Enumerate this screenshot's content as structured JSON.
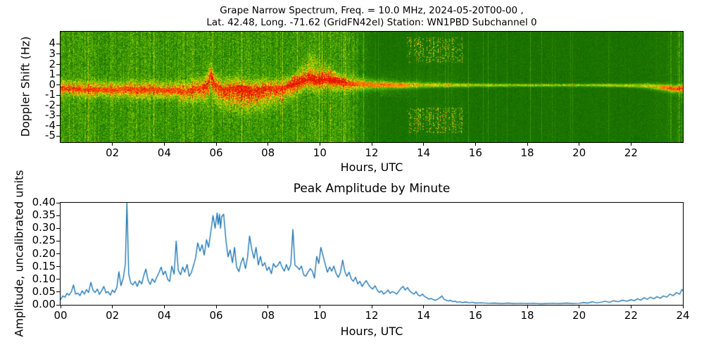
{
  "spectrogram": {
    "title_line1": "Grape Narrow Spectrum, Freq. = 10.0 MHz, 2024-05-20T00-00 ,",
    "title_line2": "Lat.  42.48, Long. -71.62 (GridFN42el) Station: WN1PBD Subchannel 0",
    "ylabel": "Doppler Shift (Hz)",
    "xlabel": "Hours, UTC",
    "station": "WN1PBD",
    "frequency": "10.0 MHz",
    "date": "2024-05-20T00-00",
    "grid_square": "FN42el",
    "subchannel": "0",
    "latitude": "42.48",
    "longitude": "-71.62",
    "x_ticks": [
      {
        "value": 2,
        "label": "02"
      },
      {
        "value": 4,
        "label": "04"
      },
      {
        "value": 6,
        "label": "06"
      },
      {
        "value": 8,
        "label": "08"
      },
      {
        "value": 10,
        "label": "10"
      },
      {
        "value": 12,
        "label": "12"
      },
      {
        "value": 14,
        "label": "14"
      },
      {
        "value": 16,
        "label": "16"
      },
      {
        "value": 18,
        "label": "18"
      },
      {
        "value": 20,
        "label": "20"
      },
      {
        "value": 22,
        "label": "22"
      }
    ],
    "y_ticks": [
      {
        "value": 4,
        "label": "4"
      },
      {
        "value": 3,
        "label": "3"
      },
      {
        "value": 2,
        "label": "2"
      },
      {
        "value": 1,
        "label": "1"
      },
      {
        "value": 0,
        "label": "0"
      },
      {
        "value": -1,
        "label": "-1"
      },
      {
        "value": -2,
        "label": "-2"
      },
      {
        "value": -3,
        "label": "-3"
      },
      {
        "value": -4,
        "label": "-4"
      },
      {
        "value": -5,
        "label": "-5"
      }
    ]
  },
  "amplitude_plot": {
    "title": "Peak Amplitude by Minute",
    "ylabel": "Amplitude, uncalibrated units",
    "xlabel": "Hours, UTC",
    "line_color": "#1f77b4",
    "x_ticks": [
      {
        "value": 0,
        "label": "00"
      },
      {
        "value": 2,
        "label": "02"
      },
      {
        "value": 4,
        "label": "04"
      },
      {
        "value": 6,
        "label": "06"
      },
      {
        "value": 8,
        "label": "08"
      },
      {
        "value": 10,
        "label": "10"
      },
      {
        "value": 12,
        "label": "12"
      },
      {
        "value": 14,
        "label": "14"
      },
      {
        "value": 16,
        "label": "16"
      },
      {
        "value": 18,
        "label": "18"
      },
      {
        "value": 20,
        "label": "20"
      },
      {
        "value": 22,
        "label": "22"
      },
      {
        "value": 24,
        "label": "24"
      }
    ],
    "y_ticks": [
      {
        "value": 0.4,
        "label": "0.40"
      },
      {
        "value": 0.35,
        "label": "0.35"
      },
      {
        "value": 0.3,
        "label": "0.30"
      },
      {
        "value": 0.25,
        "label": "0.25"
      },
      {
        "value": 0.2,
        "label": "0.20"
      },
      {
        "value": 0.15,
        "label": "0.15"
      },
      {
        "value": 0.1,
        "label": "0.10"
      },
      {
        "value": 0.05,
        "label": "0.05"
      },
      {
        "value": 0.0,
        "label": "0.00"
      }
    ]
  },
  "chart_data": [
    {
      "type": "heatmap",
      "title": "Grape Narrow Spectrum, Freq. = 10.0 MHz, 2024-05-20T00-00 ,",
      "subtitle": "Lat. 42.48, Long. -71.62 (GridFN42el) Station: WN1PBD Subchannel 0",
      "xlabel": "Hours, UTC",
      "ylabel": "Doppler Shift (Hz)",
      "xlim": [
        0,
        24
      ],
      "ylim": [
        -5.6,
        5.2
      ],
      "x_tick_values": [
        2,
        4,
        6,
        8,
        10,
        12,
        14,
        16,
        18,
        20,
        22
      ],
      "y_tick_values": [
        4,
        3,
        2,
        1,
        0,
        -1,
        -2,
        -3,
        -4,
        -5
      ],
      "colormap_stops": [
        [
          0.0,
          "#0a5f00"
        ],
        [
          0.3,
          "#288200"
        ],
        [
          0.5,
          "#50af00"
        ],
        [
          0.65,
          "#96cd00"
        ],
        [
          0.74,
          "#e6e600"
        ],
        [
          0.84,
          "#ffa000"
        ],
        [
          0.92,
          "#ff5a00"
        ],
        [
          1.0,
          "#e11400"
        ]
      ],
      "center_path": [
        [
          0,
          -0.3
        ],
        [
          0.5,
          -0.35
        ],
        [
          1,
          -0.45
        ],
        [
          1.5,
          -0.4
        ],
        [
          2,
          -0.5
        ],
        [
          2.5,
          -0.35
        ],
        [
          3,
          -0.5
        ],
        [
          3.5,
          -0.4
        ],
        [
          4,
          -0.55
        ],
        [
          4.5,
          -0.5
        ],
        [
          4.8,
          -0.7
        ],
        [
          5.1,
          -0.45
        ],
        [
          5.4,
          -0.3
        ],
        [
          5.65,
          -0.05
        ],
        [
          5.78,
          1.1
        ],
        [
          5.9,
          0.25
        ],
        [
          6.05,
          -0.15
        ],
        [
          6.25,
          -0.45
        ],
        [
          6.5,
          -0.35
        ],
        [
          6.8,
          -0.25
        ],
        [
          7.1,
          -0.35
        ],
        [
          7.4,
          -0.5
        ],
        [
          7.7,
          -0.4
        ],
        [
          8,
          -0.3
        ],
        [
          8.3,
          -0.35
        ],
        [
          8.6,
          -0.25
        ],
        [
          9,
          -0.05
        ],
        [
          9.3,
          0.25
        ],
        [
          9.6,
          0.5
        ],
        [
          9.9,
          0.25
        ],
        [
          10.2,
          0.45
        ],
        [
          10.5,
          0.3
        ],
        [
          10.8,
          0.2
        ],
        [
          11.2,
          0.15
        ],
        [
          11.6,
          0.1
        ],
        [
          12,
          0.05
        ],
        [
          13,
          0.0
        ],
        [
          15,
          0.0
        ],
        [
          17,
          0.0
        ],
        [
          19,
          0.0
        ],
        [
          21,
          0.0
        ],
        [
          22.5,
          -0.05
        ],
        [
          23.2,
          -0.2
        ],
        [
          23.6,
          -0.35
        ],
        [
          24,
          -0.3
        ]
      ],
      "band_peak": [
        [
          0,
          0.48
        ],
        [
          5,
          0.5
        ],
        [
          6,
          0.52
        ],
        [
          9,
          0.52
        ],
        [
          11,
          0.48
        ],
        [
          12,
          0.48
        ],
        [
          13,
          0.52
        ],
        [
          15,
          0.52
        ],
        [
          17,
          0.5
        ],
        [
          19,
          0.48
        ],
        [
          21,
          0.5
        ],
        [
          22.5,
          0.55
        ],
        [
          23.5,
          0.62
        ],
        [
          24,
          0.65
        ]
      ],
      "band_width": [
        [
          0,
          0.5
        ],
        [
          4,
          0.55
        ],
        [
          5,
          0.65
        ],
        [
          6,
          0.7
        ],
        [
          7,
          0.65
        ],
        [
          8,
          0.6
        ],
        [
          9,
          0.6
        ],
        [
          10,
          0.55
        ],
        [
          11,
          0.5
        ],
        [
          12,
          0.4
        ],
        [
          12.7,
          0.25
        ],
        [
          13.5,
          0.22
        ],
        [
          14,
          0.18
        ],
        [
          15,
          0.15
        ],
        [
          16,
          0.12
        ],
        [
          18,
          0.1
        ],
        [
          20,
          0.1
        ],
        [
          22,
          0.13
        ],
        [
          23,
          0.22
        ],
        [
          24,
          0.28
        ]
      ],
      "features": {
        "noise_fade": {
          "h_start": 11.0,
          "h_end": 12.3
        },
        "lower_tail": {
          "h_start": 4.9,
          "h_end": 9.3,
          "shift_offset": -1.1
        },
        "plume": {
          "h_start": 8.65,
          "h_peak": 9.6,
          "h_end": 11.1,
          "max_shift": 3.2
        },
        "speckle_bands": {
          "h_start": 13.35,
          "h_end": 15.55,
          "shift_min": 2.2,
          "shift_max": 4.7
        },
        "right_noise": {
          "h_start": 22.6,
          "h_end": 24
        }
      }
    },
    {
      "type": "line",
      "title": "Peak Amplitude by Minute",
      "xlabel": "Hours, UTC",
      "ylabel": "Amplitude, uncalibrated units",
      "xlim": [
        0,
        24
      ],
      "ylim": [
        0,
        0.4
      ],
      "x_tick_values": [
        0,
        2,
        4,
        6,
        8,
        10,
        12,
        14,
        16,
        18,
        20,
        22,
        24
      ],
      "y_tick_values": [
        0.0,
        0.05,
        0.1,
        0.15,
        0.2,
        0.25,
        0.3,
        0.35,
        0.4
      ],
      "line_color": "#1f77b4",
      "x": [
        0,
        0.08,
        0.17,
        0.25,
        0.33,
        0.42,
        0.5,
        0.58,
        0.67,
        0.75,
        0.83,
        0.92,
        1,
        1.08,
        1.17,
        1.25,
        1.33,
        1.42,
        1.5,
        1.58,
        1.67,
        1.75,
        1.83,
        1.92,
        2,
        2.08,
        2.17,
        2.25,
        2.33,
        2.42,
        2.5,
        2.56,
        2.63,
        2.71,
        2.79,
        2.88,
        2.96,
        3.04,
        3.13,
        3.21,
        3.29,
        3.38,
        3.46,
        3.54,
        3.63,
        3.71,
        3.79,
        3.88,
        3.96,
        4.04,
        4.13,
        4.21,
        4.29,
        4.38,
        4.46,
        4.54,
        4.63,
        4.71,
        4.79,
        4.88,
        4.96,
        5.04,
        5.13,
        5.21,
        5.29,
        5.38,
        5.46,
        5.54,
        5.63,
        5.71,
        5.79,
        5.88,
        5.96,
        6.04,
        6.08,
        6.13,
        6.17,
        6.21,
        6.29,
        6.38,
        6.46,
        6.54,
        6.63,
        6.71,
        6.79,
        6.88,
        6.96,
        7.04,
        7.13,
        7.21,
        7.29,
        7.38,
        7.46,
        7.54,
        7.63,
        7.71,
        7.79,
        7.88,
        7.96,
        8.04,
        8.13,
        8.21,
        8.29,
        8.38,
        8.46,
        8.54,
        8.63,
        8.71,
        8.79,
        8.88,
        8.96,
        9.04,
        9.13,
        9.21,
        9.29,
        9.38,
        9.46,
        9.54,
        9.63,
        9.71,
        9.79,
        9.88,
        9.96,
        10.04,
        10.13,
        10.21,
        10.29,
        10.38,
        10.46,
        10.54,
        10.63,
        10.71,
        10.79,
        10.88,
        10.96,
        11.04,
        11.13,
        11.21,
        11.29,
        11.38,
        11.46,
        11.54,
        11.63,
        11.71,
        11.79,
        11.88,
        11.96,
        12.04,
        12.13,
        12.21,
        12.29,
        12.38,
        12.46,
        12.54,
        12.63,
        12.71,
        12.79,
        12.88,
        12.96,
        13.04,
        13.13,
        13.21,
        13.29,
        13.38,
        13.46,
        13.54,
        13.63,
        13.71,
        13.79,
        13.88,
        13.96,
        14.04,
        14.13,
        14.21,
        14.29,
        14.38,
        14.46,
        14.54,
        14.63,
        14.71,
        14.79,
        14.88,
        14.96,
        15.04,
        15.13,
        15.21,
        15.29,
        15.38,
        15.5,
        15.63,
        15.75,
        15.88,
        16,
        16.25,
        16.5,
        16.75,
        17,
        17.25,
        17.5,
        17.75,
        18,
        18.25,
        18.5,
        18.75,
        19,
        19.25,
        19.5,
        19.75,
        20,
        20.17,
        20.33,
        20.5,
        20.67,
        20.83,
        21,
        21.17,
        21.33,
        21.5,
        21.67,
        21.83,
        22,
        22.13,
        22.25,
        22.38,
        22.5,
        22.63,
        22.75,
        22.88,
        23,
        23.13,
        23.25,
        23.38,
        23.5,
        23.63,
        23.75,
        23.88,
        23.96,
        24
      ],
      "y": [
        0.02,
        0.035,
        0.03,
        0.045,
        0.038,
        0.052,
        0.078,
        0.042,
        0.046,
        0.036,
        0.055,
        0.042,
        0.06,
        0.048,
        0.088,
        0.058,
        0.048,
        0.062,
        0.041,
        0.055,
        0.072,
        0.047,
        0.052,
        0.038,
        0.058,
        0.048,
        0.068,
        0.13,
        0.075,
        0.105,
        0.16,
        0.4,
        0.12,
        0.085,
        0.078,
        0.092,
        0.072,
        0.095,
        0.082,
        0.115,
        0.14,
        0.095,
        0.08,
        0.102,
        0.088,
        0.108,
        0.125,
        0.148,
        0.118,
        0.132,
        0.1,
        0.092,
        0.152,
        0.12,
        0.25,
        0.135,
        0.118,
        0.148,
        0.128,
        0.158,
        0.112,
        0.125,
        0.155,
        0.185,
        0.243,
        0.21,
        0.235,
        0.195,
        0.255,
        0.225,
        0.282,
        0.35,
        0.3,
        0.36,
        0.315,
        0.355,
        0.3,
        0.345,
        0.355,
        0.252,
        0.188,
        0.215,
        0.165,
        0.225,
        0.148,
        0.13,
        0.165,
        0.185,
        0.142,
        0.185,
        0.27,
        0.215,
        0.182,
        0.225,
        0.156,
        0.19,
        0.152,
        0.165,
        0.135,
        0.148,
        0.122,
        0.162,
        0.148,
        0.155,
        0.17,
        0.148,
        0.132,
        0.158,
        0.135,
        0.158,
        0.295,
        0.155,
        0.148,
        0.138,
        0.152,
        0.117,
        0.112,
        0.128,
        0.142,
        0.132,
        0.105,
        0.19,
        0.162,
        0.225,
        0.19,
        0.158,
        0.128,
        0.148,
        0.132,
        0.152,
        0.122,
        0.108,
        0.125,
        0.175,
        0.132,
        0.112,
        0.128,
        0.102,
        0.092,
        0.108,
        0.082,
        0.092,
        0.072,
        0.085,
        0.095,
        0.078,
        0.068,
        0.062,
        0.075,
        0.058,
        0.048,
        0.055,
        0.042,
        0.048,
        0.058,
        0.045,
        0.052,
        0.048,
        0.042,
        0.052,
        0.065,
        0.072,
        0.058,
        0.068,
        0.055,
        0.048,
        0.042,
        0.052,
        0.038,
        0.035,
        0.042,
        0.032,
        0.028,
        0.022,
        0.025,
        0.02,
        0.018,
        0.022,
        0.028,
        0.035,
        0.022,
        0.018,
        0.015,
        0.018,
        0.012,
        0.015,
        0.01,
        0.012,
        0.009,
        0.011,
        0.008,
        0.01,
        0.007,
        0.008,
        0.006,
        0.007,
        0.005,
        0.007,
        0.005,
        0.006,
        0.005,
        0.006,
        0.004,
        0.005,
        0.006,
        0.005,
        0.007,
        0.005,
        0.006,
        0.009,
        0.007,
        0.012,
        0.008,
        0.01,
        0.014,
        0.01,
        0.016,
        0.012,
        0.018,
        0.014,
        0.02,
        0.016,
        0.024,
        0.018,
        0.028,
        0.022,
        0.03,
        0.024,
        0.032,
        0.026,
        0.035,
        0.03,
        0.042,
        0.036,
        0.048,
        0.042,
        0.06,
        0.055
      ]
    }
  ]
}
